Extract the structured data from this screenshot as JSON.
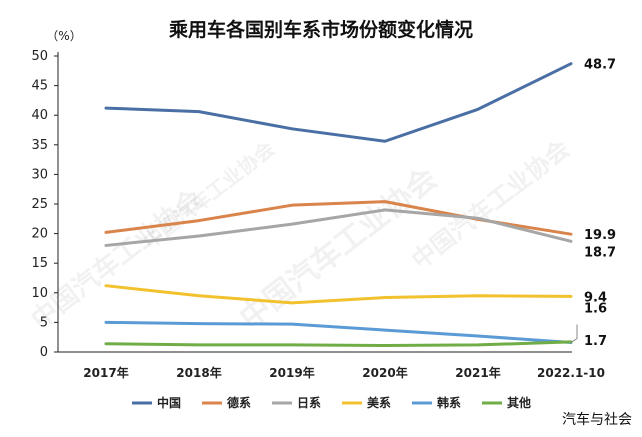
{
  "chart_data": {
    "type": "line",
    "title": "乘用车各国别车系市场份额变化情况",
    "unit": "（%）",
    "categories": [
      "2017年",
      "2018年",
      "2019年",
      "2020年",
      "2021年",
      "2022.1-10"
    ],
    "ylim": [
      0,
      50
    ],
    "yticks": [
      0,
      5,
      10,
      15,
      20,
      25,
      30,
      35,
      40,
      45,
      50
    ],
    "grid": false,
    "legend_position": "bottom",
    "series": [
      {
        "name": "中国",
        "color": "#4a6fa5",
        "values": [
          41.2,
          40.6,
          37.7,
          35.6,
          41.0,
          48.7
        ],
        "end_label": "48.7"
      },
      {
        "name": "德系",
        "color": "#d9844a",
        "values": [
          20.2,
          22.2,
          24.8,
          25.4,
          22.4,
          19.9
        ],
        "end_label": "19.9"
      },
      {
        "name": "日系",
        "color": "#a6a6a6",
        "values": [
          18.0,
          19.6,
          21.6,
          24.0,
          22.6,
          18.7
        ],
        "end_label": "18.7"
      },
      {
        "name": "美系",
        "color": "#f2c12e",
        "values": [
          11.2,
          9.5,
          8.3,
          9.2,
          9.5,
          9.4
        ],
        "end_label": "9.4"
      },
      {
        "name": "韩系",
        "color": "#5b9bd5",
        "values": [
          5.0,
          4.8,
          4.7,
          3.7,
          2.7,
          1.6
        ],
        "end_label": "1.6"
      },
      {
        "name": "其他",
        "color": "#70ad47",
        "values": [
          1.4,
          1.2,
          1.2,
          1.1,
          1.2,
          1.7
        ],
        "end_label": "1.7"
      }
    ]
  },
  "watermark_text": "中国汽车工业协会",
  "credit": "汽车与社会"
}
